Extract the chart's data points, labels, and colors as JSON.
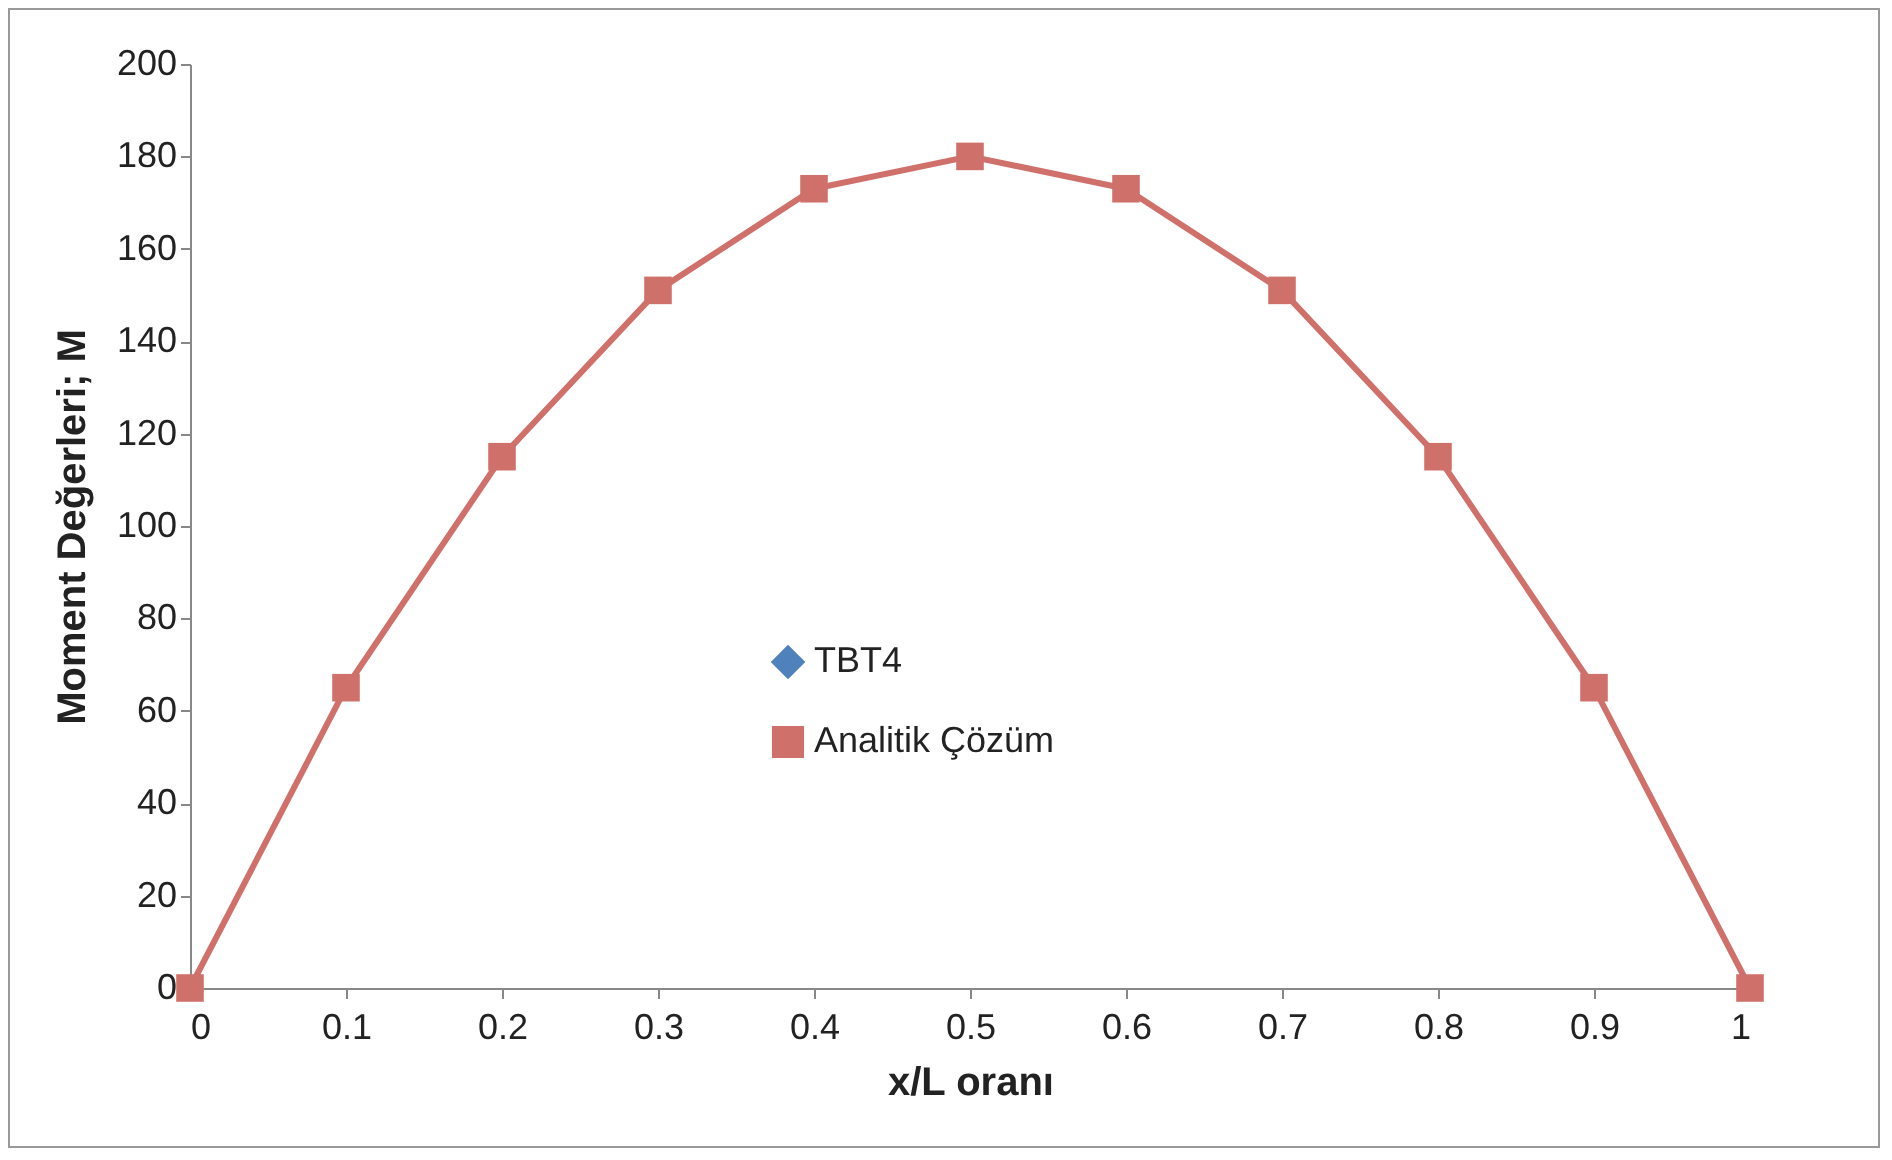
{
  "chart_data": {
    "type": "line",
    "xlabel": "x/L oranı",
    "ylabel": "Moment Değerleri; M",
    "x": [
      0,
      0.1,
      0.2,
      0.3,
      0.4,
      0.5,
      0.6,
      0.7,
      0.8,
      0.9,
      1
    ],
    "series": [
      {
        "name": "TBT4",
        "color": "#4f81bd",
        "marker": "diamond",
        "values": [
          null,
          null,
          null,
          null,
          null,
          null,
          null,
          null,
          null,
          null,
          null
        ]
      },
      {
        "name": "Analitik Çözüm",
        "color": "#d0706b",
        "marker": "square",
        "values": [
          0,
          65,
          115,
          151,
          173,
          180,
          173,
          151,
          115,
          65,
          0
        ]
      }
    ],
    "xlim": [
      0,
      1
    ],
    "xticks": [
      0,
      0.1,
      0.2,
      0.3,
      0.4,
      0.5,
      0.6,
      0.7,
      0.8,
      0.9,
      1
    ],
    "ylim": [
      0,
      200
    ],
    "yticks": [
      0,
      20,
      40,
      60,
      80,
      100,
      120,
      140,
      160,
      180,
      200
    ],
    "grid": false,
    "legend": "center",
    "line_style": "solid"
  }
}
